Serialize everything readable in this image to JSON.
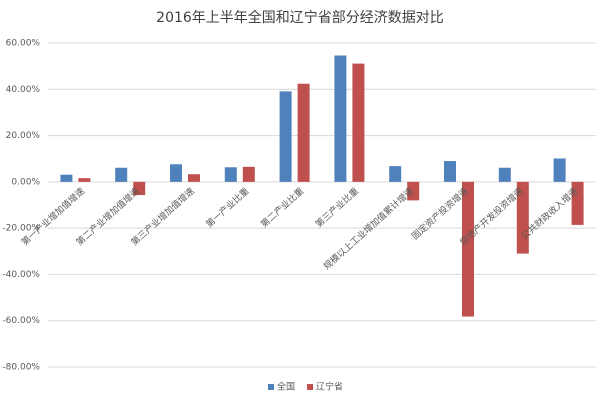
{
  "chart_data": {
    "type": "bar",
    "title": "2016年上半年全国和辽宁省部分经济数据对比",
    "categories": [
      "第一产业增加值增速",
      "第二产业增加值增速",
      "第三产业增加值增速",
      "第一产业比重",
      "第二产业比重",
      "第三产业比重",
      "规模以上工业增加值累计增速",
      "固定资产投资增速",
      "房地产开发投资增速",
      "公共财政收入增速"
    ],
    "series": [
      {
        "name": "全国",
        "color": "#4f81bd",
        "values": [
          3.1,
          6.1,
          7.6,
          6.3,
          39.1,
          54.6,
          6.8,
          9.0,
          6.1,
          10.1
        ]
      },
      {
        "name": "辽宁省",
        "color": "#c0504d",
        "values": [
          1.6,
          -5.7,
          3.3,
          6.5,
          42.4,
          51.1,
          -8.0,
          -58.2,
          -31.0,
          -18.6
        ]
      }
    ],
    "ylim": [
      -80,
      60
    ],
    "yticks": [
      {
        "value": 60,
        "label": "60.00%"
      },
      {
        "value": 40,
        "label": "40.00%"
      },
      {
        "value": 20,
        "label": "20.00%"
      },
      {
        "value": 0,
        "label": "0.00%"
      },
      {
        "value": -20,
        "label": "-20.00%"
      },
      {
        "value": -40,
        "label": "-40.00%"
      },
      {
        "value": -60,
        "label": "-60.00%"
      },
      {
        "value": -80,
        "label": "-80.00%"
      }
    ],
    "grid": true,
    "legend": "bottom"
  }
}
